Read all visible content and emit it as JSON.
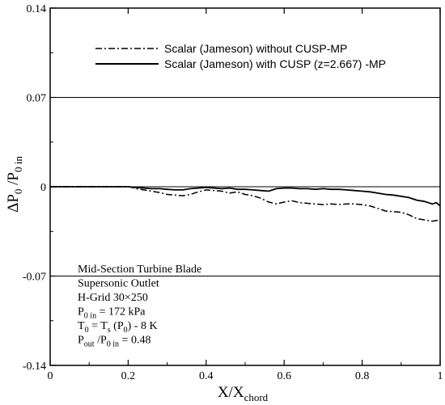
{
  "chart_data": {
    "type": "line",
    "xlim": [
      0,
      1
    ],
    "ylim": [
      -0.14,
      0.14
    ],
    "x_ticks": [
      0,
      0.2,
      0.4,
      0.6,
      0.8,
      1
    ],
    "x_tick_labels": [
      "0",
      "0.2",
      "0.4",
      "0.6",
      "0.8",
      "1"
    ],
    "y_ticks": [
      0.14,
      0.07,
      0,
      -0.07,
      -0.14
    ],
    "y_tick_labels": [
      "0.14",
      "0.07",
      "0",
      "-0.07",
      "-0.14"
    ],
    "horizontal_grid": true,
    "vertical_grid": false,
    "ylabel": {
      "main": "ΔP",
      "sub1": "0",
      "mid": " /P",
      "sub2": "0 in"
    },
    "xlabel": {
      "main": "X/X",
      "sub": "chord"
    },
    "legend_position": "top",
    "series": [
      {
        "name": "Scalar (Jameson) without CUSP-MP",
        "style": "dash-dot",
        "x": [
          0.0,
          0.1,
          0.2,
          0.21,
          0.22,
          0.24,
          0.26,
          0.28,
          0.3,
          0.32,
          0.34,
          0.36,
          0.38,
          0.4,
          0.42,
          0.44,
          0.46,
          0.48,
          0.5,
          0.52,
          0.54,
          0.56,
          0.58,
          0.6,
          0.62,
          0.64,
          0.66,
          0.68,
          0.7,
          0.72,
          0.74,
          0.76,
          0.78,
          0.8,
          0.82,
          0.84,
          0.86,
          0.88,
          0.9,
          0.92,
          0.94,
          0.96,
          0.98,
          1.0
        ],
        "y": [
          0.0,
          0.0,
          0.0,
          -0.0005,
          -0.0015,
          -0.0025,
          -0.0035,
          -0.0045,
          -0.006,
          -0.0065,
          -0.007,
          -0.006,
          -0.004,
          -0.0025,
          -0.003,
          -0.0035,
          -0.005,
          -0.004,
          -0.006,
          -0.007,
          -0.009,
          -0.012,
          -0.0135,
          -0.012,
          -0.011,
          -0.0125,
          -0.013,
          -0.0135,
          -0.014,
          -0.0135,
          -0.014,
          -0.0135,
          -0.0135,
          -0.014,
          -0.015,
          -0.017,
          -0.019,
          -0.0195,
          -0.02,
          -0.022,
          -0.025,
          -0.026,
          -0.027,
          -0.026
        ]
      },
      {
        "name": "Scalar (Jameson) with CUSP (z=2.667) -MP",
        "style": "solid",
        "x": [
          0.0,
          0.1,
          0.2,
          0.22,
          0.24,
          0.26,
          0.28,
          0.3,
          0.32,
          0.34,
          0.36,
          0.38,
          0.4,
          0.42,
          0.44,
          0.46,
          0.48,
          0.5,
          0.52,
          0.54,
          0.56,
          0.58,
          0.6,
          0.62,
          0.64,
          0.66,
          0.68,
          0.7,
          0.72,
          0.74,
          0.76,
          0.78,
          0.8,
          0.82,
          0.84,
          0.86,
          0.88,
          0.9,
          0.92,
          0.94,
          0.96,
          0.98,
          0.99,
          1.0
        ],
        "y": [
          0.0,
          0.0,
          0.0,
          -0.0005,
          -0.001,
          -0.0015,
          -0.0015,
          -0.002,
          -0.0025,
          -0.0025,
          -0.0015,
          -0.001,
          -0.0005,
          -0.001,
          -0.0015,
          -0.001,
          -0.002,
          -0.002,
          -0.0025,
          -0.003,
          -0.0035,
          -0.0015,
          -0.001,
          -0.001,
          -0.0015,
          -0.0015,
          -0.002,
          -0.0015,
          -0.002,
          -0.002,
          -0.0025,
          -0.003,
          -0.0035,
          -0.004,
          -0.005,
          -0.006,
          -0.0065,
          -0.0075,
          -0.0085,
          -0.0105,
          -0.0115,
          -0.0135,
          -0.0125,
          -0.015
        ]
      }
    ],
    "annotations": [
      {
        "parts": [
          {
            "t": "Mid-Section Turbine Blade"
          }
        ]
      },
      {
        "parts": [
          {
            "t": "Supersonic Outlet"
          }
        ]
      },
      {
        "parts": [
          {
            "t": "H-Grid 30×250"
          }
        ]
      },
      {
        "parts": [
          {
            "t": "P"
          },
          {
            "t": "0 in",
            "sub": true
          },
          {
            "t": " = 172 kPa"
          }
        ]
      },
      {
        "parts": [
          {
            "t": "T"
          },
          {
            "t": "0",
            "sub": true
          },
          {
            "t": " = T"
          },
          {
            "t": "s",
            "sub": true
          },
          {
            "t": " (P"
          },
          {
            "t": "0",
            "sub": true
          },
          {
            "t": ") - 8 K"
          }
        ]
      },
      {
        "parts": [
          {
            "t": "P"
          },
          {
            "t": "out",
            "sub": true
          },
          {
            "t": " /P"
          },
          {
            "t": "0 in",
            "sub": true
          },
          {
            "t": " = 0.48"
          }
        ]
      }
    ]
  }
}
